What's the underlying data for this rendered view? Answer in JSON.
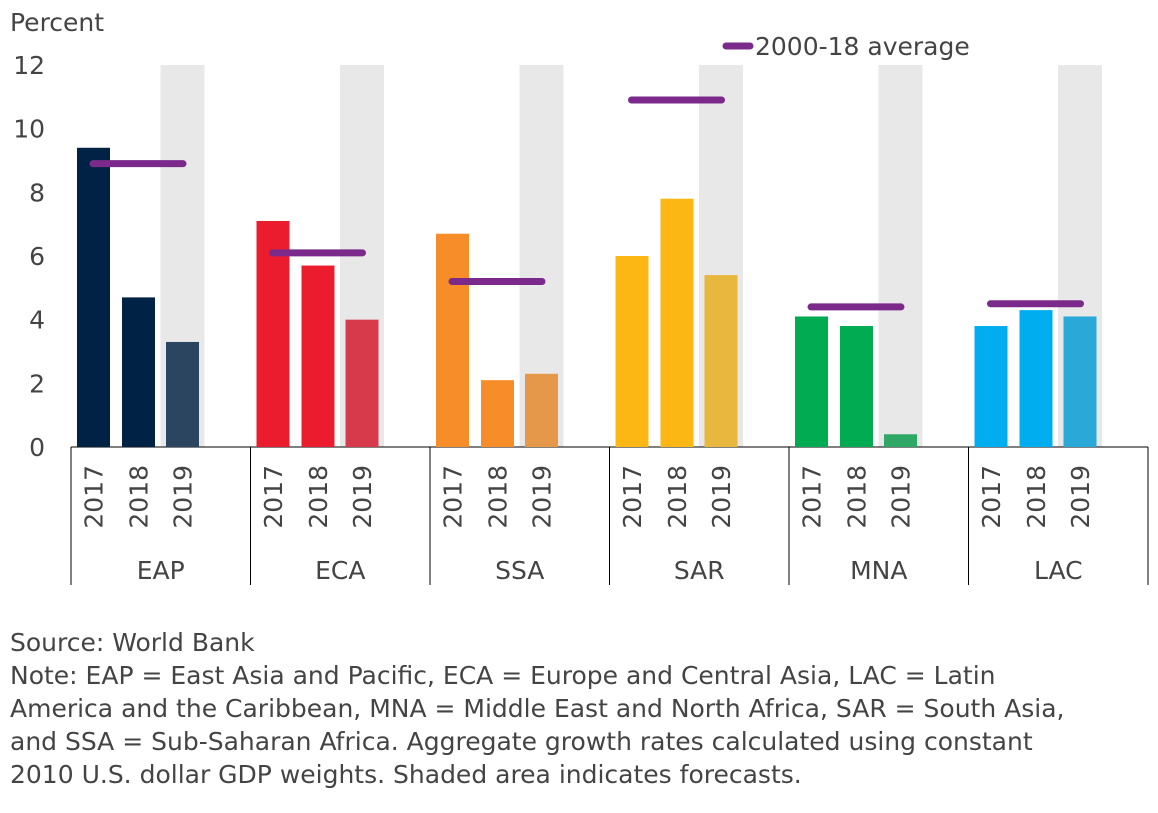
{
  "chart_data": {
    "type": "grouped_bar",
    "y_label": "Percent",
    "ylim": [
      0,
      12
    ],
    "yticks": [
      0,
      2,
      4,
      6,
      8,
      10,
      12
    ],
    "categories": [
      "2017",
      "2018",
      "2019"
    ],
    "forecast": [
      false,
      false,
      true
    ],
    "shade_color": "#e8e8e8",
    "average_color": "#7b2a8c",
    "legend": "2000-18 average",
    "groups": [
      {
        "name": "EAP",
        "colors": [
          "#002244",
          "#002244",
          "#2b4560"
        ],
        "values": [
          9.4,
          4.7,
          3.3
        ],
        "average": 8.9
      },
      {
        "name": "ECA",
        "colors": [
          "#eb1c2d",
          "#eb1c2d",
          "#d73a4a"
        ],
        "values": [
          7.1,
          5.7,
          4.0
        ],
        "average": 6.1
      },
      {
        "name": "SSA",
        "colors": [
          "#f78d28",
          "#f78d28",
          "#e5974a"
        ],
        "values": [
          6.7,
          2.1,
          2.3
        ],
        "average": 5.2
      },
      {
        "name": "SAR",
        "colors": [
          "#fdb714",
          "#fdb714",
          "#e8b73d"
        ],
        "values": [
          6.0,
          7.8,
          5.4
        ],
        "average": 10.9
      },
      {
        "name": "MNA",
        "colors": [
          "#00ab51",
          "#00ab51",
          "#2fa765"
        ],
        "values": [
          4.1,
          3.8,
          0.4
        ],
        "average": 4.4
      },
      {
        "name": "LAC",
        "colors": [
          "#00aeef",
          "#00aeef",
          "#2aa9d8"
        ],
        "values": [
          3.8,
          4.3,
          4.1
        ],
        "average": 4.5
      }
    ],
    "source": "Source: World Bank",
    "note": [
      "Note: EAP = East Asia and Pacific, ECA = Europe and Central Asia, LAC = Latin",
      "America and the Caribbean, MNA = Middle East and North Africa, SAR = South Asia,",
      "and SSA = Sub-Saharan Africa.  Aggregate growth rates calculated using constant",
      "2010 U.S. dollar GDP weights. Shaded area indicates forecasts."
    ]
  }
}
